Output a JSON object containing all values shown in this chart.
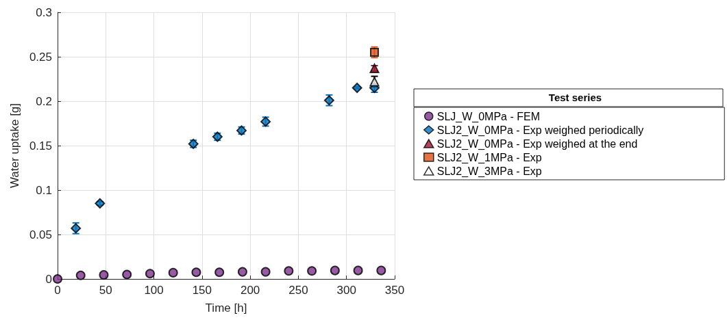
{
  "chart_data": {
    "type": "scatter",
    "xlabel": "Time [h]",
    "ylabel": "Water uptake [g]",
    "legend_title": "Test series",
    "xlim": [
      0,
      350
    ],
    "xticks": [
      0,
      50,
      100,
      150,
      200,
      250,
      300,
      350
    ],
    "ylim": [
      0,
      0.3
    ],
    "yticks": [
      0,
      0.05,
      0.1,
      0.15,
      0.2,
      0.25,
      0.3
    ],
    "grid": true,
    "legend": "right",
    "series": [
      {
        "name": "SLJ_W_0MPa - FEM",
        "color": "#7e2f8e",
        "marker": "circle",
        "x": [
          0,
          24,
          48,
          72,
          96,
          120,
          144,
          168,
          192,
          216,
          240,
          264,
          288,
          312,
          336
        ],
        "values": [
          0,
          0.004,
          0.0045,
          0.005,
          0.006,
          0.007,
          0.0075,
          0.0075,
          0.008,
          0.008,
          0.009,
          0.009,
          0.0095,
          0.0095,
          0.0095
        ]
      },
      {
        "name": "SLJ2_W_0MPa - Exp weighed periodically",
        "color": "#0072bd",
        "marker": "diamond",
        "x": [
          19,
          44,
          141,
          166,
          191,
          216,
          282,
          311,
          329
        ],
        "values": [
          0.057,
          0.085,
          0.152,
          0.16,
          0.167,
          0.177,
          0.201,
          0.215,
          0.215
        ],
        "errors": [
          0.006,
          0.002,
          0.004,
          0.004,
          0.004,
          0.005,
          0.006,
          0.001,
          0.005
        ]
      },
      {
        "name": "SLJ2_W_0MPa - Exp weighed at the end",
        "color": "#a2142f",
        "marker": "triangle",
        "x": [
          329
        ],
        "values": [
          0.237
        ],
        "errors": [
          0.003
        ]
      },
      {
        "name": "SLJ2_W_1MPa - Exp",
        "color": "#d95319",
        "marker": "square",
        "x": [
          329
        ],
        "values": [
          0.255
        ],
        "errors": [
          0.006
        ]
      },
      {
        "name": "SLJ2_W_3MPa - Exp",
        "color": "#ffffff",
        "marker": "triangle",
        "x": [
          329
        ],
        "values": [
          0.222
        ],
        "errors": [
          0.006
        ]
      }
    ]
  }
}
